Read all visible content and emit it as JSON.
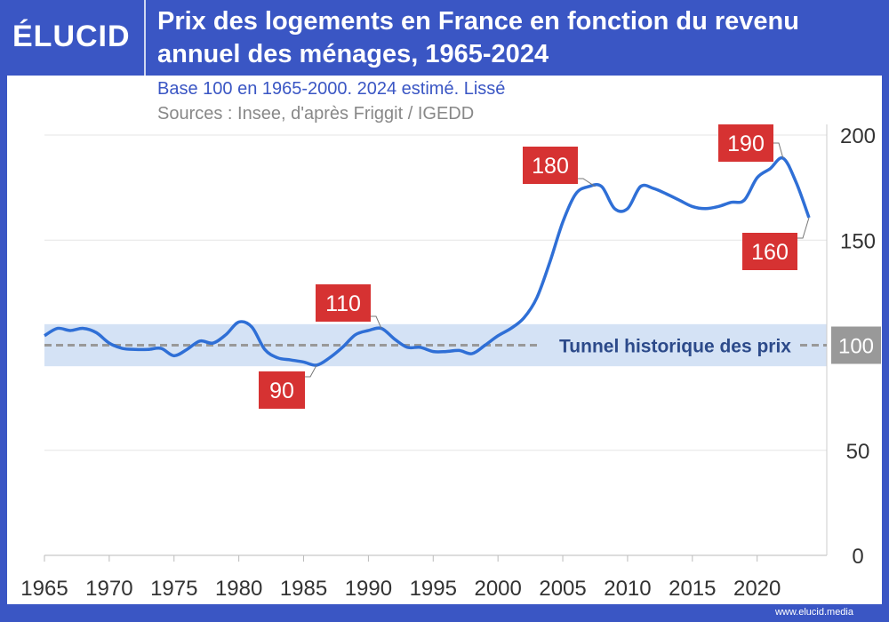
{
  "header": {
    "logo": "ÉLUCID",
    "title": "Prix des logements en France en fonction du revenu annuel des ménages, 1965-2024"
  },
  "subtitle": "Base 100 en 1965-2000. 2024 estimé. Lissé",
  "sources": "Sources : Insee, d'après Friggit / IGEDD",
  "footer": "www.elucid.media",
  "colors": {
    "frame": "#3a56c4",
    "line": "#2f6fd6",
    "band": "#d4e2f5",
    "label_box": "#d63232",
    "reference": "#999999"
  },
  "chart_data": {
    "type": "line",
    "xlim": [
      1965,
      2024
    ],
    "ylim": [
      0,
      200
    ],
    "x_ticks": [
      "1965",
      "1970",
      "1975",
      "1980",
      "1985",
      "1990",
      "1995",
      "2000",
      "2005",
      "2010",
      "2015",
      "2020"
    ],
    "y_ticks": [
      "0",
      "50",
      "100",
      "150",
      "200"
    ],
    "y_axis_side": "right",
    "grid": true,
    "band": {
      "from": 90,
      "to": 110,
      "label": "Tunnel historique des prix"
    },
    "reference_line": {
      "value": 100,
      "label": "100"
    },
    "x": [
      1965,
      1966,
      1967,
      1968,
      1969,
      1970,
      1971,
      1972,
      1973,
      1974,
      1975,
      1976,
      1977,
      1978,
      1979,
      1980,
      1981,
      1982,
      1983,
      1984,
      1985,
      1986,
      1987,
      1988,
      1989,
      1990,
      1991,
      1992,
      1993,
      1994,
      1995,
      1996,
      1997,
      1998,
      1999,
      2000,
      2001,
      2002,
      2003,
      2004,
      2005,
      2006,
      2007,
      2008,
      2009,
      2010,
      2011,
      2012,
      2013,
      2014,
      2015,
      2016,
      2017,
      2018,
      2019,
      2020,
      2021,
      2022,
      2023,
      2024
    ],
    "values": [
      104.5,
      108,
      107,
      108,
      106,
      101,
      98.5,
      98,
      98,
      98.5,
      95,
      98,
      102,
      101,
      105,
      111,
      108.7,
      98,
      94,
      93,
      92,
      90.5,
      94,
      99,
      105,
      107,
      108,
      103,
      99,
      99,
      97,
      97,
      97.5,
      96,
      100,
      104.5,
      108,
      113,
      122.6,
      139.5,
      158.6,
      172,
      175.5,
      175.5,
      165,
      165,
      175.5,
      174.6,
      172,
      169,
      166,
      165,
      166,
      168,
      169,
      179.7,
      184,
      189,
      177.6,
      160.7
    ],
    "annotations": [
      {
        "text": "90",
        "x": 1986,
        "y": 90
      },
      {
        "text": "110",
        "x": 1991,
        "y": 110
      },
      {
        "text": "180",
        "x": 2007.5,
        "y": 180
      },
      {
        "text": "190",
        "x": 2022,
        "y": 190
      },
      {
        "text": "160",
        "x": 2024,
        "y": 160
      }
    ]
  }
}
